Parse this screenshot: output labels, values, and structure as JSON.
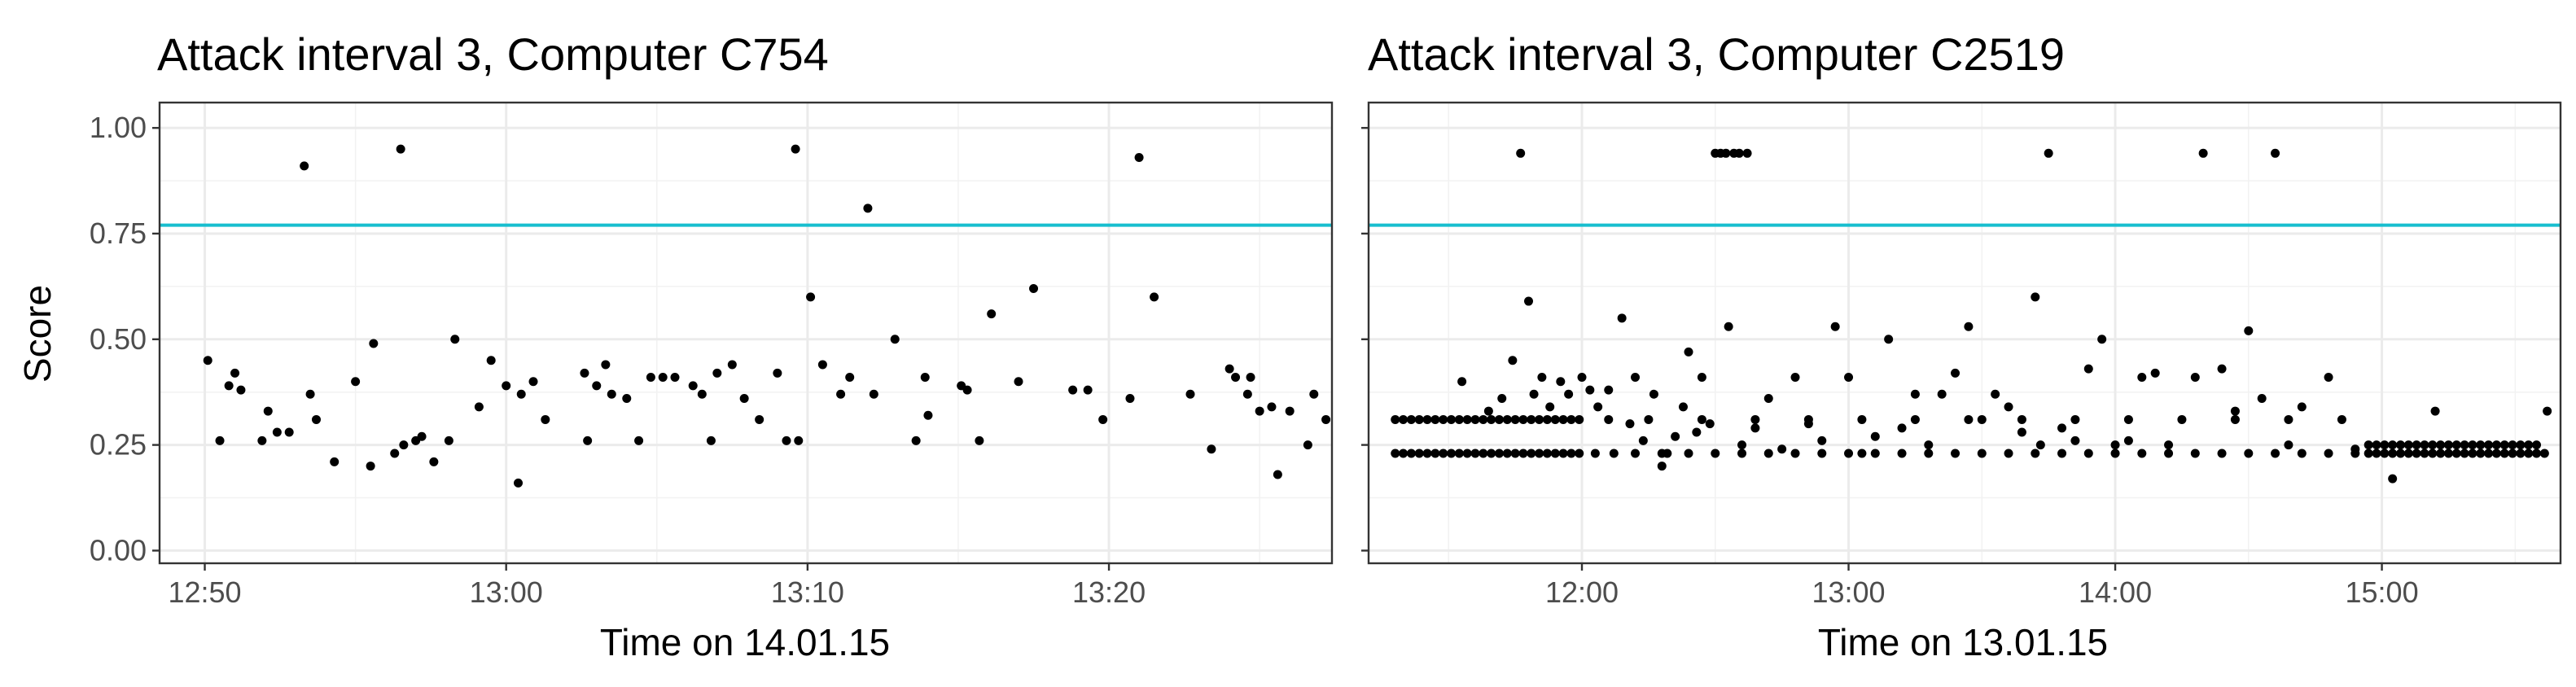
{
  "colors": {
    "threshold": "#17becf",
    "points": "#000000",
    "grid": "#ebebeb",
    "background": "#ffffff"
  },
  "chart_data": [
    {
      "type": "scatter",
      "title": "Attack interval 3, Computer C754",
      "xlabel": "Time on 14.01.15",
      "ylabel": "Score",
      "x_unit": "minutes after 12:50",
      "xlim": [
        -1.5,
        37.4
      ],
      "ylim": [
        -0.03,
        1.06
      ],
      "xticks": [
        {
          "value": 0,
          "label": "12:50"
        },
        {
          "value": 10,
          "label": "13:00"
        },
        {
          "value": 20,
          "label": "13:10"
        },
        {
          "value": 30,
          "label": "13:20"
        }
      ],
      "yticks": [
        {
          "value": 0,
          "label": "0.00"
        },
        {
          "value": 0.25,
          "label": "0.25"
        },
        {
          "value": 0.5,
          "label": "0.50"
        },
        {
          "value": 0.75,
          "label": "0.75"
        },
        {
          "value": 1.0,
          "label": "1.00"
        }
      ],
      "threshold": 0.77,
      "grid": true,
      "points": [
        [
          0.1,
          0.45
        ],
        [
          0.5,
          0.26
        ],
        [
          0.8,
          0.39
        ],
        [
          1.0,
          0.42
        ],
        [
          1.2,
          0.38
        ],
        [
          1.9,
          0.26
        ],
        [
          2.1,
          0.33
        ],
        [
          2.4,
          0.28
        ],
        [
          2.8,
          0.28
        ],
        [
          3.3,
          0.91
        ],
        [
          3.5,
          0.37
        ],
        [
          3.7,
          0.31
        ],
        [
          4.3,
          0.21
        ],
        [
          5.0,
          0.4
        ],
        [
          5.5,
          0.2
        ],
        [
          5.6,
          0.49
        ],
        [
          6.3,
          0.23
        ],
        [
          6.5,
          0.95
        ],
        [
          6.6,
          0.25
        ],
        [
          7.0,
          0.26
        ],
        [
          7.2,
          0.27
        ],
        [
          7.6,
          0.21
        ],
        [
          8.1,
          0.26
        ],
        [
          8.3,
          0.5
        ],
        [
          9.1,
          0.34
        ],
        [
          9.5,
          0.45
        ],
        [
          10.0,
          0.39
        ],
        [
          10.4,
          0.16
        ],
        [
          10.5,
          0.37
        ],
        [
          10.9,
          0.4
        ],
        [
          11.3,
          0.31
        ],
        [
          12.6,
          0.42
        ],
        [
          12.7,
          0.26
        ],
        [
          13.0,
          0.39
        ],
        [
          13.3,
          0.44
        ],
        [
          13.5,
          0.37
        ],
        [
          14.0,
          0.36
        ],
        [
          14.4,
          0.26
        ],
        [
          14.8,
          0.41
        ],
        [
          15.2,
          0.41
        ],
        [
          15.6,
          0.41
        ],
        [
          16.2,
          0.39
        ],
        [
          16.5,
          0.37
        ],
        [
          16.8,
          0.26
        ],
        [
          17.0,
          0.42
        ],
        [
          17.5,
          0.44
        ],
        [
          17.9,
          0.36
        ],
        [
          18.4,
          0.31
        ],
        [
          19.0,
          0.42
        ],
        [
          19.3,
          0.26
        ],
        [
          19.6,
          0.95
        ],
        [
          19.7,
          0.26
        ],
        [
          20.1,
          0.6
        ],
        [
          20.5,
          0.44
        ],
        [
          21.1,
          0.37
        ],
        [
          21.4,
          0.41
        ],
        [
          22.0,
          0.81
        ],
        [
          22.2,
          0.37
        ],
        [
          22.9,
          0.5
        ],
        [
          23.6,
          0.26
        ],
        [
          23.9,
          0.41
        ],
        [
          24.0,
          0.32
        ],
        [
          25.1,
          0.39
        ],
        [
          25.3,
          0.38
        ],
        [
          25.7,
          0.26
        ],
        [
          26.1,
          0.56
        ],
        [
          27.0,
          0.4
        ],
        [
          27.5,
          0.62
        ],
        [
          28.8,
          0.38
        ],
        [
          29.3,
          0.38
        ],
        [
          29.8,
          0.31
        ],
        [
          30.7,
          0.36
        ],
        [
          31.0,
          0.93
        ],
        [
          31.5,
          0.6
        ],
        [
          32.7,
          0.37
        ],
        [
          33.4,
          0.24
        ],
        [
          34.0,
          0.43
        ],
        [
          34.2,
          0.41
        ],
        [
          34.6,
          0.37
        ],
        [
          34.7,
          0.41
        ],
        [
          35.0,
          0.33
        ],
        [
          35.4,
          0.34
        ],
        [
          35.6,
          0.18
        ],
        [
          36.0,
          0.33
        ],
        [
          36.6,
          0.25
        ],
        [
          36.8,
          0.37
        ],
        [
          37.2,
          0.31
        ]
      ]
    },
    {
      "type": "scatter",
      "title": "Attack interval 3, Computer C2519",
      "xlabel": "Time on 13.01.15",
      "ylabel": "",
      "x_unit": "hours after 11:00",
      "xlim": [
        0.2,
        4.67
      ],
      "ylim": [
        -0.03,
        1.06
      ],
      "xticks": [
        {
          "value": 1,
          "label": "12:00"
        },
        {
          "value": 2,
          "label": "13:00"
        },
        {
          "value": 3,
          "label": "14:00"
        },
        {
          "value": 4,
          "label": "15:00"
        }
      ],
      "yticks": [
        {
          "value": 0,
          "label": ""
        },
        {
          "value": 0.25,
          "label": ""
        },
        {
          "value": 0.5,
          "label": ""
        },
        {
          "value": 0.75,
          "label": ""
        },
        {
          "value": 1.0,
          "label": ""
        }
      ],
      "threshold": 0.77,
      "grid": true,
      "points": [
        [
          0.3,
          0.31
        ],
        [
          0.3,
          0.23
        ],
        [
          0.33,
          0.31
        ],
        [
          0.33,
          0.23
        ],
        [
          0.36,
          0.31
        ],
        [
          0.36,
          0.23
        ],
        [
          0.39,
          0.31
        ],
        [
          0.39,
          0.23
        ],
        [
          0.42,
          0.31
        ],
        [
          0.42,
          0.23
        ],
        [
          0.45,
          0.31
        ],
        [
          0.45,
          0.23
        ],
        [
          0.48,
          0.31
        ],
        [
          0.48,
          0.23
        ],
        [
          0.51,
          0.31
        ],
        [
          0.51,
          0.23
        ],
        [
          0.54,
          0.31
        ],
        [
          0.54,
          0.23
        ],
        [
          0.57,
          0.31
        ],
        [
          0.57,
          0.23
        ],
        [
          0.6,
          0.31
        ],
        [
          0.6,
          0.23
        ],
        [
          0.63,
          0.31
        ],
        [
          0.63,
          0.23
        ],
        [
          0.66,
          0.31
        ],
        [
          0.66,
          0.23
        ],
        [
          0.69,
          0.31
        ],
        [
          0.69,
          0.23
        ],
        [
          0.72,
          0.31
        ],
        [
          0.72,
          0.23
        ],
        [
          0.75,
          0.31
        ],
        [
          0.75,
          0.23
        ],
        [
          0.78,
          0.31
        ],
        [
          0.78,
          0.23
        ],
        [
          0.81,
          0.31
        ],
        [
          0.81,
          0.23
        ],
        [
          0.84,
          0.31
        ],
        [
          0.84,
          0.23
        ],
        [
          0.87,
          0.31
        ],
        [
          0.87,
          0.23
        ],
        [
          0.9,
          0.31
        ],
        [
          0.9,
          0.23
        ],
        [
          0.93,
          0.31
        ],
        [
          0.93,
          0.23
        ],
        [
          0.96,
          0.31
        ],
        [
          0.96,
          0.23
        ],
        [
          0.99,
          0.31
        ],
        [
          0.99,
          0.23
        ],
        [
          0.55,
          0.4
        ],
        [
          0.65,
          0.33
        ],
        [
          0.7,
          0.36
        ],
        [
          0.74,
          0.45
        ],
        [
          0.77,
          0.94
        ],
        [
          0.8,
          0.59
        ],
        [
          0.82,
          0.37
        ],
        [
          0.85,
          0.41
        ],
        [
          0.88,
          0.34
        ],
        [
          0.92,
          0.4
        ],
        [
          0.95,
          0.37
        ],
        [
          1.0,
          0.41
        ],
        [
          1.03,
          0.38
        ],
        [
          1.06,
          0.34
        ],
        [
          1.1,
          0.38
        ],
        [
          1.15,
          0.55
        ],
        [
          1.18,
          0.3
        ],
        [
          1.2,
          0.41
        ],
        [
          1.23,
          0.26
        ],
        [
          1.27,
          0.37
        ],
        [
          1.3,
          0.2
        ],
        [
          1.32,
          0.23
        ],
        [
          1.35,
          0.27
        ],
        [
          1.38,
          0.34
        ],
        [
          1.4,
          0.47
        ],
        [
          1.43,
          0.28
        ],
        [
          1.45,
          0.41
        ],
        [
          1.48,
          0.3
        ],
        [
          1.5,
          0.94
        ],
        [
          1.52,
          0.94
        ],
        [
          1.54,
          0.94
        ],
        [
          1.55,
          0.53
        ],
        [
          1.57,
          0.94
        ],
        [
          1.59,
          0.94
        ],
        [
          1.6,
          0.25
        ],
        [
          1.62,
          0.94
        ],
        [
          1.65,
          0.29
        ],
        [
          1.7,
          0.36
        ],
        [
          1.75,
          0.24
        ],
        [
          1.8,
          0.41
        ],
        [
          1.85,
          0.3
        ],
        [
          1.9,
          0.26
        ],
        [
          1.95,
          0.53
        ],
        [
          2.0,
          0.41
        ],
        [
          2.05,
          0.23
        ],
        [
          2.1,
          0.27
        ],
        [
          2.15,
          0.5
        ],
        [
          2.2,
          0.29
        ],
        [
          2.25,
          0.37
        ],
        [
          2.3,
          0.25
        ],
        [
          2.35,
          0.37
        ],
        [
          2.4,
          0.42
        ],
        [
          2.45,
          0.53
        ],
        [
          2.5,
          0.31
        ],
        [
          2.55,
          0.37
        ],
        [
          2.6,
          0.34
        ],
        [
          2.65,
          0.28
        ],
        [
          2.7,
          0.6
        ],
        [
          2.72,
          0.25
        ],
        [
          2.75,
          0.94
        ],
        [
          2.8,
          0.29
        ],
        [
          2.85,
          0.26
        ],
        [
          2.9,
          0.43
        ],
        [
          2.95,
          0.5
        ],
        [
          3.0,
          0.25
        ],
        [
          3.05,
          0.26
        ],
        [
          3.1,
          0.41
        ],
        [
          3.15,
          0.42
        ],
        [
          3.2,
          0.25
        ],
        [
          3.3,
          0.41
        ],
        [
          3.33,
          0.94
        ],
        [
          3.4,
          0.43
        ],
        [
          3.45,
          0.33
        ],
        [
          3.5,
          0.52
        ],
        [
          3.55,
          0.36
        ],
        [
          3.6,
          0.94
        ],
        [
          3.65,
          0.25
        ],
        [
          3.7,
          0.34
        ],
        [
          3.8,
          0.41
        ],
        [
          3.85,
          0.31
        ],
        [
          3.9,
          0.24
        ],
        [
          1.05,
          0.23
        ],
        [
          1.12,
          0.23
        ],
        [
          1.2,
          0.23
        ],
        [
          1.3,
          0.23
        ],
        [
          1.4,
          0.23
        ],
        [
          1.5,
          0.23
        ],
        [
          1.6,
          0.23
        ],
        [
          1.7,
          0.23
        ],
        [
          1.8,
          0.23
        ],
        [
          1.9,
          0.23
        ],
        [
          2.0,
          0.23
        ],
        [
          2.1,
          0.23
        ],
        [
          2.2,
          0.23
        ],
        [
          2.3,
          0.23
        ],
        [
          2.4,
          0.23
        ],
        [
          2.5,
          0.23
        ],
        [
          2.6,
          0.23
        ],
        [
          2.7,
          0.23
        ],
        [
          2.8,
          0.23
        ],
        [
          2.9,
          0.23
        ],
        [
          3.0,
          0.23
        ],
        [
          3.1,
          0.23
        ],
        [
          3.2,
          0.23
        ],
        [
          3.3,
          0.23
        ],
        [
          3.4,
          0.23
        ],
        [
          3.5,
          0.23
        ],
        [
          3.6,
          0.23
        ],
        [
          3.7,
          0.23
        ],
        [
          3.8,
          0.23
        ],
        [
          3.9,
          0.23
        ],
        [
          1.1,
          0.31
        ],
        [
          1.25,
          0.31
        ],
        [
          1.45,
          0.31
        ],
        [
          1.65,
          0.31
        ],
        [
          1.85,
          0.31
        ],
        [
          2.05,
          0.31
        ],
        [
          2.25,
          0.31
        ],
        [
          2.45,
          0.31
        ],
        [
          2.65,
          0.31
        ],
        [
          2.85,
          0.31
        ],
        [
          3.05,
          0.31
        ],
        [
          3.25,
          0.31
        ],
        [
          3.45,
          0.31
        ],
        [
          3.65,
          0.31
        ],
        [
          3.95,
          0.25
        ],
        [
          3.95,
          0.23
        ],
        [
          3.98,
          0.25
        ],
        [
          3.98,
          0.23
        ],
        [
          4.01,
          0.25
        ],
        [
          4.01,
          0.23
        ],
        [
          4.04,
          0.25
        ],
        [
          4.04,
          0.23
        ],
        [
          4.07,
          0.25
        ],
        [
          4.07,
          0.23
        ],
        [
          4.1,
          0.25
        ],
        [
          4.1,
          0.23
        ],
        [
          4.13,
          0.25
        ],
        [
          4.13,
          0.23
        ],
        [
          4.16,
          0.25
        ],
        [
          4.16,
          0.23
        ],
        [
          4.19,
          0.25
        ],
        [
          4.19,
          0.23
        ],
        [
          4.22,
          0.25
        ],
        [
          4.22,
          0.23
        ],
        [
          4.25,
          0.25
        ],
        [
          4.25,
          0.23
        ],
        [
          4.28,
          0.25
        ],
        [
          4.28,
          0.23
        ],
        [
          4.31,
          0.25
        ],
        [
          4.31,
          0.23
        ],
        [
          4.34,
          0.25
        ],
        [
          4.34,
          0.23
        ],
        [
          4.37,
          0.25
        ],
        [
          4.37,
          0.23
        ],
        [
          4.4,
          0.25
        ],
        [
          4.4,
          0.23
        ],
        [
          4.43,
          0.25
        ],
        [
          4.43,
          0.23
        ],
        [
          4.46,
          0.25
        ],
        [
          4.46,
          0.23
        ],
        [
          4.49,
          0.25
        ],
        [
          4.49,
          0.23
        ],
        [
          4.52,
          0.25
        ],
        [
          4.52,
          0.23
        ],
        [
          4.55,
          0.25
        ],
        [
          4.55,
          0.23
        ],
        [
          4.58,
          0.25
        ],
        [
          4.58,
          0.23
        ],
        [
          4.61,
          0.23
        ],
        [
          4.62,
          0.33
        ],
        [
          4.04,
          0.17
        ],
        [
          4.2,
          0.33
        ]
      ]
    }
  ]
}
